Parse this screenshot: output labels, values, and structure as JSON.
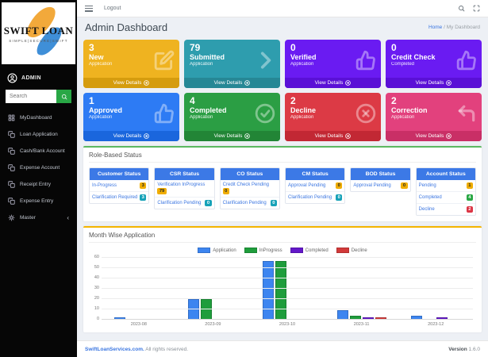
{
  "sidebar": {
    "logo_title": "SWIFT LOAN",
    "logo_tagline": "SIMPLE|SECURE|SWIFT",
    "user_label": "ADMIN",
    "search_placeholder": "Search",
    "menu": [
      {
        "icon": "dashboard-icon",
        "label": "MyDashboard"
      },
      {
        "icon": "file-icon",
        "label": "Loan Application"
      },
      {
        "icon": "file-icon",
        "label": "Cash/Bank Account"
      },
      {
        "icon": "file-icon",
        "label": "Expense Account"
      },
      {
        "icon": "file-icon",
        "label": "Receipt Entry"
      },
      {
        "icon": "file-icon",
        "label": "Expense Entry"
      },
      {
        "icon": "gear-icon",
        "label": "Master",
        "chevron": "‹"
      }
    ]
  },
  "topbar": {
    "logout_label": "Logout"
  },
  "header": {
    "title": "Admin Dashboard",
    "breadcrumb_home": "Home",
    "breadcrumb_sep": " / ",
    "breadcrumb_current": "My Dashboard"
  },
  "cards": [
    {
      "count": "3",
      "title": "New",
      "subtitle": "Application",
      "link": "View Details",
      "icon": "edit-icon",
      "color": "#efb320",
      "footer_color": "#d59c0e"
    },
    {
      "count": "79",
      "title": "Submitted",
      "subtitle": "Application",
      "link": "View Details",
      "icon": "chevron-right-icon",
      "color": "#2e9dae",
      "footer_color": "#268795"
    },
    {
      "count": "0",
      "title": "Verified",
      "subtitle": "Application",
      "link": "View Details",
      "icon": "thumbs-up-icon",
      "color": "#6a1bf2",
      "footer_color": "#5a10d6"
    },
    {
      "count": "0",
      "title": "Credit Check",
      "subtitle": "Completed",
      "link": "View Details",
      "icon": "thumbs-up-icon",
      "color": "#6a1bf2",
      "footer_color": "#5a10d6"
    },
    {
      "count": "1",
      "title": "Approved",
      "subtitle": "Application",
      "link": "View Details",
      "icon": "thumbs-up-icon",
      "color": "#2d7bf4",
      "footer_color": "#1a66dd"
    },
    {
      "count": "4",
      "title": "Completed",
      "subtitle": "Application",
      "link": "View Details",
      "icon": "check-circle-icon",
      "color": "#2b9e44",
      "footer_color": "#228536"
    },
    {
      "count": "2",
      "title": "Decline",
      "subtitle": "Application",
      "link": "View Details",
      "icon": "x-circle-icon",
      "color": "#dc3a45",
      "footer_color": "#c22834"
    },
    {
      "count": "2",
      "title": "Correction",
      "subtitle": "Application",
      "link": "View Details",
      "icon": "undo-icon",
      "color": "#e2417d",
      "footer_color": "#c92f66"
    }
  ],
  "role_status": {
    "title": "Role-Based Status",
    "columns": [
      {
        "header": "Customer Status",
        "rows": [
          {
            "label": "In-Progress",
            "badge": "3",
            "badge_color": "#f0ad00",
            "badge_text": "dark"
          },
          {
            "label": "Clarification Required",
            "badge": "3",
            "badge_color": "#17a2b8",
            "badge_text": "light"
          }
        ]
      },
      {
        "header": "CSR Status",
        "rows": [
          {
            "label": "Verification InProgress",
            "badge": "79",
            "badge_color": "#f0ad00",
            "badge_text": "dark"
          },
          {
            "label": "Clarification Pending",
            "badge": "0",
            "badge_color": "#17a2b8",
            "badge_text": "light"
          }
        ]
      },
      {
        "header": "CO Status",
        "rows": [
          {
            "label": "Credit Check Pending",
            "badge": "0",
            "badge_color": "#f0ad00",
            "badge_text": "dark"
          },
          {
            "label": "Clarification Pending",
            "badge": "0",
            "badge_color": "#17a2b8",
            "badge_text": "light"
          }
        ]
      },
      {
        "header": "CM Status",
        "rows": [
          {
            "label": "Approval Pending",
            "badge": "0",
            "badge_color": "#f0ad00",
            "badge_text": "dark"
          },
          {
            "label": "Clarification Pending",
            "badge": "0",
            "badge_color": "#17a2b8",
            "badge_text": "light"
          }
        ]
      },
      {
        "header": "BOD Status",
        "rows": [
          {
            "label": "Approval Pending",
            "badge": "0",
            "badge_color": "#f0ad00",
            "badge_text": "dark"
          }
        ]
      },
      {
        "header": "Account Status",
        "rows": [
          {
            "label": "Pending",
            "badge": "1",
            "badge_color": "#f0ad00",
            "badge_text": "dark"
          },
          {
            "label": "Completed",
            "badge": "4",
            "badge_color": "#28a745",
            "badge_text": "light"
          },
          {
            "label": "Decline",
            "badge": "2",
            "badge_color": "#dc3545",
            "badge_text": "light"
          }
        ]
      }
    ]
  },
  "chart_panel": {
    "title": "Month Wise Application"
  },
  "chart_data": {
    "type": "bar",
    "title": "Month Wise Application",
    "categories": [
      "2023-08",
      "2023-09",
      "2023-10",
      "2023-11",
      "2023-12"
    ],
    "series": [
      {
        "name": "Application",
        "color": "#3d85f0",
        "values": [
          2,
          20,
          57,
          9,
          4
        ]
      },
      {
        "name": "InProgress",
        "color": "#1f9d3c",
        "values": [
          1,
          20,
          57,
          4,
          1
        ]
      },
      {
        "name": "Completed",
        "color": "#6318c9",
        "values": [
          0,
          0,
          0,
          2,
          2
        ]
      },
      {
        "name": "Decline",
        "color": "#d23a3a",
        "values": [
          0,
          0,
          0,
          2,
          0
        ]
      }
    ],
    "xlabel": "",
    "ylabel": "",
    "ylim": [
      0,
      60
    ],
    "yticks": [
      0,
      10,
      20,
      30,
      40,
      50,
      60
    ],
    "grid": true,
    "legend_position": "top"
  },
  "footer": {
    "brand": "SwiftLoanServices.com.",
    "rights": "All rights reserved.",
    "version_label": "Version",
    "version": "1.6.0"
  }
}
